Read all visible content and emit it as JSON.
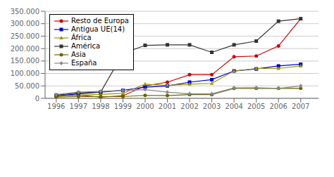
{
  "chart_data": {
    "type": "line",
    "x": [
      1996,
      1997,
      1998,
      1999,
      2000,
      2001,
      2002,
      2003,
      2004,
      2005,
      2006,
      2007
    ],
    "series": [
      {
        "name": "Resto de Europa",
        "color": "#cc0000",
        "marker": "circle",
        "values": [
          8000,
          13000,
          5000,
          10000,
          50000,
          65000,
          95000,
          95000,
          167000,
          170000,
          210000,
          320000
        ]
      },
      {
        "name": "Antigua UE(14)",
        "color": "#0000cc",
        "marker": "square",
        "values": [
          10000,
          18000,
          25000,
          32000,
          45000,
          50000,
          65000,
          75000,
          110000,
          118000,
          130000,
          137000
        ]
      },
      {
        "name": "África",
        "color": "#999900",
        "marker": "triangle",
        "values": [
          8000,
          13000,
          16000,
          20000,
          57000,
          52000,
          57000,
          60000,
          110000,
          120000,
          120000,
          130000
        ]
      },
      {
        "name": "América",
        "color": "#333333",
        "marker": "square",
        "values": [
          13000,
          22000,
          25000,
          180000,
          213000,
          215000,
          215000,
          185000,
          215000,
          230000,
          310000,
          320000
        ]
      },
      {
        "name": "Asia",
        "color": "#666600",
        "marker": "circle",
        "values": [
          5000,
          7000,
          7000,
          7000,
          12000,
          11000,
          15000,
          15000,
          40000,
          40000,
          40000,
          40000
        ]
      },
      {
        "name": "España",
        "color": "#888888",
        "marker": "diamond",
        "values": [
          15000,
          25000,
          28000,
          32000,
          35000,
          25000,
          18000,
          18000,
          42000,
          43000,
          40000,
          50000
        ]
      }
    ],
    "xlim": [
      1995.5,
      2007.8
    ],
    "xticks": [
      1996,
      1997,
      1998,
      1999,
      2000,
      2001,
      2002,
      2003,
      2004,
      2005,
      2006,
      2007
    ],
    "ylim": [
      0,
      350000
    ],
    "yticks": [
      0,
      {
        "value": 50000,
        "label": "50.000"
      },
      {
        "value": 100000,
        "label": "100.000"
      },
      {
        "value": 150000,
        "label": "150.000"
      },
      {
        "value": 200000,
        "label": "200.000"
      },
      {
        "value": 250000,
        "label": "250.000"
      },
      {
        "value": 300000,
        "label": "300.000"
      },
      {
        "value": 350000,
        "label": "350.000"
      }
    ],
    "grid": true,
    "legend": "upper left"
  }
}
